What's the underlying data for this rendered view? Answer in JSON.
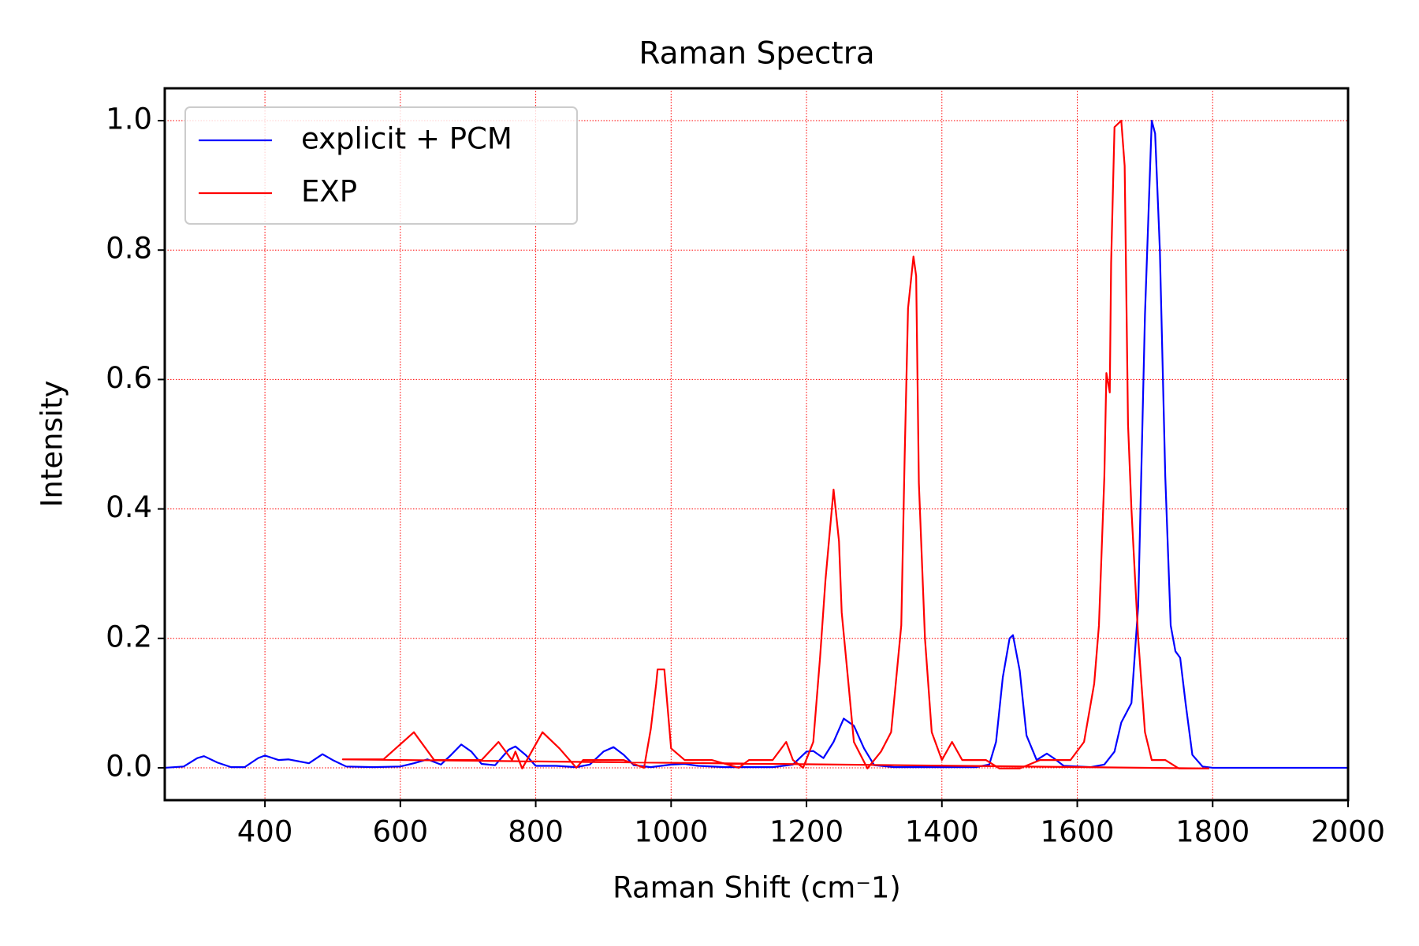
{
  "chart_data": {
    "type": "line",
    "title": "Raman Spectra",
    "x_label": "Raman Shift (cm⁻1)",
    "y_label": "Intensity",
    "xlim": [
      252,
      2000
    ],
    "ylim": [
      -0.05,
      1.05
    ],
    "xticks": [
      400,
      600,
      800,
      1000,
      1200,
      1400,
      1600,
      1800,
      2000
    ],
    "yticks": [
      {
        "value": 0,
        "label": "0.0"
      },
      0.2,
      0.4,
      0.6,
      0.8,
      {
        "value": 1,
        "label": "1.0"
      }
    ],
    "grid": true,
    "grid_color": "#ff0000",
    "legend": "upper-left",
    "series": [
      {
        "name": "explicit + PCM",
        "color": "#0000ff",
        "x": [
          252,
          280,
          300,
          310,
          330,
          350,
          370,
          390,
          400,
          420,
          435,
          450,
          465,
          485,
          500,
          520,
          560,
          600,
          620,
          640,
          660,
          675,
          690,
          705,
          720,
          740,
          760,
          770,
          785,
          800,
          830,
          860,
          880,
          900,
          915,
          930,
          945,
          970,
          1000,
          1020,
          1040,
          1080,
          1150,
          1180,
          1200,
          1210,
          1225,
          1240,
          1255,
          1270,
          1285,
          1300,
          1330,
          1450,
          1470,
          1480,
          1490,
          1500,
          1505,
          1515,
          1525,
          1540,
          1555,
          1565,
          1580,
          1620,
          1640,
          1655,
          1665,
          1680,
          1690,
          1700,
          1710,
          1715,
          1722,
          1730,
          1738,
          1745,
          1752,
          1760,
          1770,
          1785,
          1800,
          2000
        ],
        "values": [
          0,
          0.002,
          0.015,
          0.018,
          0.008,
          0.001,
          0.001,
          0.015,
          0.019,
          0.012,
          0.013,
          0.01,
          0.007,
          0.021,
          0.012,
          0.002,
          0.001,
          0.002,
          0.007,
          0.013,
          0.005,
          0.02,
          0.036,
          0.025,
          0.006,
          0.004,
          0.028,
          0.033,
          0.02,
          0.003,
          0.003,
          0.001,
          0.005,
          0.025,
          0.032,
          0.02,
          0.004,
          0.001,
          0.005,
          0.006,
          0.003,
          0.001,
          0.001,
          0.005,
          0.025,
          0.026,
          0.015,
          0.04,
          0.076,
          0.065,
          0.03,
          0.004,
          0.001,
          0.001,
          0.005,
          0.04,
          0.14,
          0.2,
          0.205,
          0.15,
          0.05,
          0.012,
          0.022,
          0.015,
          0.003,
          0.001,
          0.005,
          0.025,
          0.07,
          0.1,
          0.25,
          0.7,
          1.0,
          0.98,
          0.8,
          0.45,
          0.22,
          0.18,
          0.17,
          0.1,
          0.02,
          0.002,
          0,
          0
        ]
      },
      {
        "name": "EXP",
        "color": "#ff0000",
        "x": [
          1795,
          515,
          575,
          620,
          650,
          720,
          745,
          765,
          770,
          780,
          810,
          835,
          860,
          870,
          930,
          960,
          970,
          978,
          980,
          990,
          1000,
          1020,
          1060,
          1100,
          1115,
          1150,
          1170,
          1180,
          1195,
          1210,
          1220,
          1228,
          1240,
          1248,
          1252,
          1262,
          1270,
          1290,
          1310,
          1325,
          1340,
          1345,
          1350,
          1358,
          1362,
          1366,
          1372,
          1375,
          1385,
          1400,
          1415,
          1430,
          1465,
          1485,
          1515,
          1545,
          1590,
          1610,
          1625,
          1632,
          1640,
          1643,
          1648,
          1650,
          1655,
          1665,
          1670,
          1675,
          1680,
          1690,
          1700,
          1710,
          1730,
          1750,
          1790
        ],
        "values": [
          -0.001,
          0.013,
          0.013,
          0.055,
          0.012,
          0.012,
          0.04,
          0.012,
          0.025,
          -0.001,
          0.055,
          0.03,
          0,
          0.012,
          0.012,
          0,
          0.06,
          0.13,
          0.152,
          0.152,
          0.03,
          0.012,
          0.012,
          0,
          0.012,
          0.012,
          0.04,
          0.012,
          0,
          0.04,
          0.17,
          0.29,
          0.43,
          0.35,
          0.24,
          0.13,
          0.04,
          -0.001,
          0.025,
          0.055,
          0.22,
          0.48,
          0.71,
          0.79,
          0.76,
          0.44,
          0.28,
          0.2,
          0.055,
          0.012,
          0.04,
          0.012,
          0.012,
          -0.001,
          -0.001,
          0.012,
          0.012,
          0.04,
          0.13,
          0.22,
          0.45,
          0.61,
          0.58,
          0.78,
          0.99,
          1.0,
          0.93,
          0.53,
          0.4,
          0.2,
          0.055,
          0.012,
          0.012,
          -0.001,
          -0.001
        ]
      }
    ]
  }
}
